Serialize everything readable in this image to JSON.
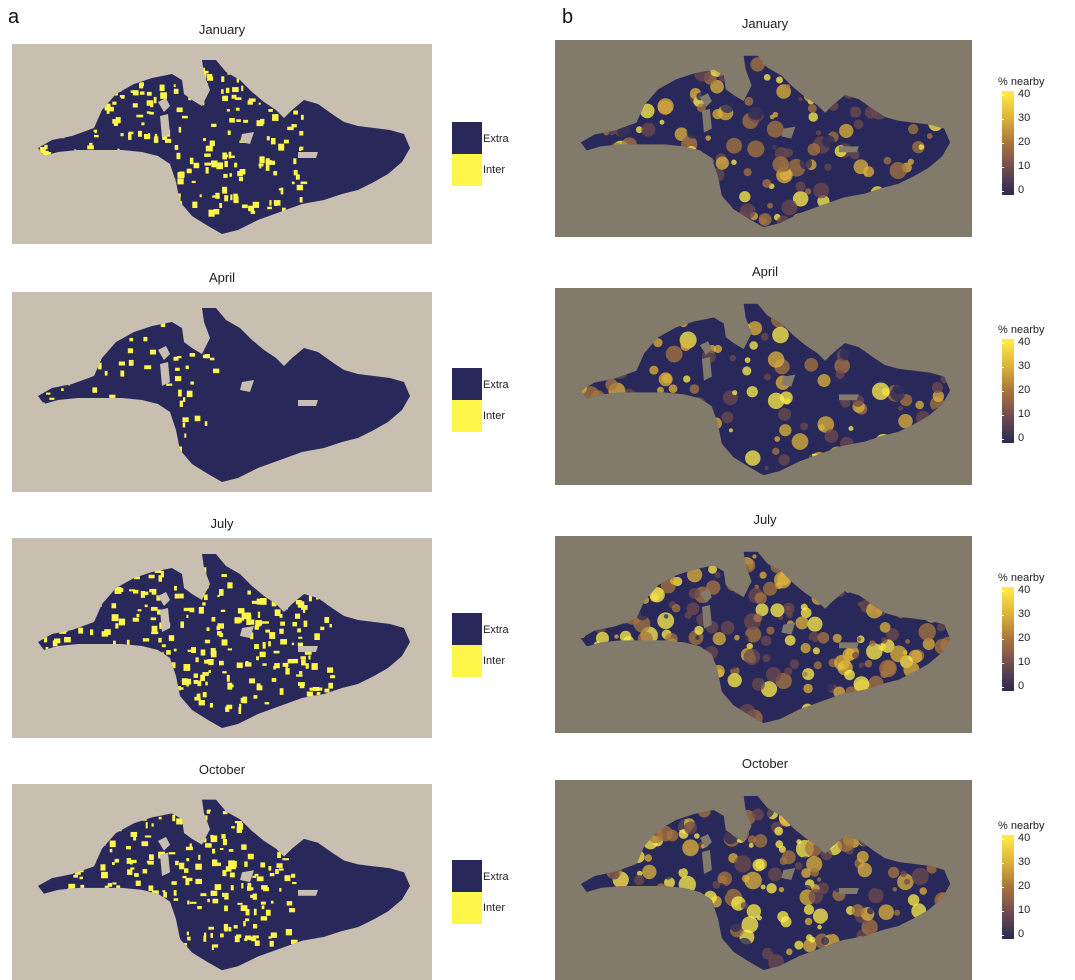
{
  "panels": {
    "a": {
      "letter": "a"
    },
    "b": {
      "letter": "b"
    }
  },
  "months": [
    "January",
    "April",
    "July",
    "October"
  ],
  "left_legend": {
    "items": [
      {
        "label": "Extra",
        "color": "#29285a"
      },
      {
        "label": "Inter",
        "color": "#fff64a"
      }
    ]
  },
  "right_legend": {
    "title": "% nearby",
    "ticks": [
      "40",
      "30",
      "20",
      "10",
      "0"
    ],
    "colors": [
      "#2a2a5a",
      "#6e4a4e",
      "#a8753f",
      "#e0b33a",
      "#fff04a"
    ]
  },
  "colors": {
    "left_bg": "#c9bfb1",
    "right_bg": "#827a6b",
    "sea_dark": "#29285a",
    "inter_yellow": "#fff64a"
  },
  "inter_share": {
    "January": 0.45,
    "April": 0.12,
    "July": 0.55,
    "October": 0.4
  },
  "nearby_intensity": {
    "January": 0.55,
    "April": 0.45,
    "July": 0.65,
    "October": 0.6
  }
}
